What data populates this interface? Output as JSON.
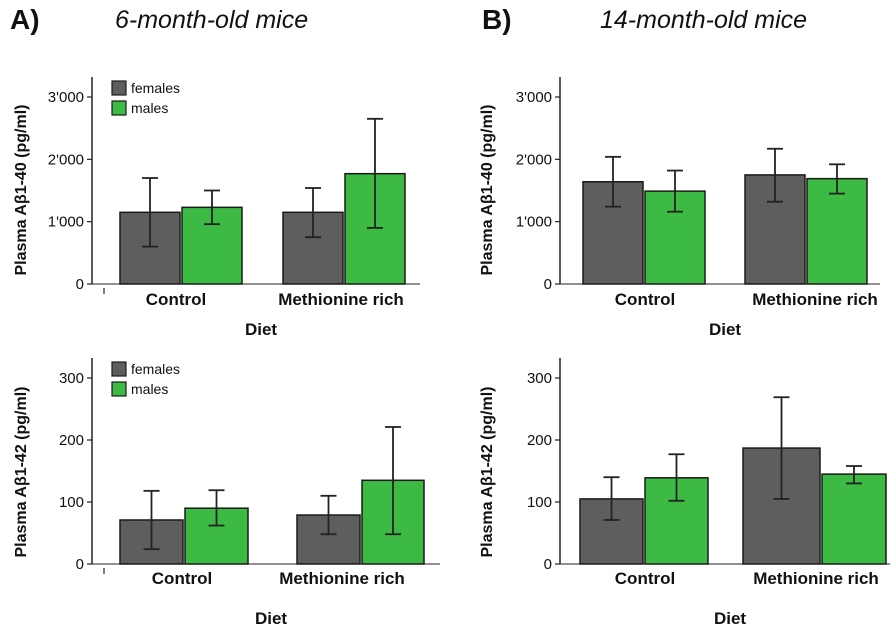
{
  "panels": {
    "a": {
      "letter": "A)",
      "title": "6-month-old mice"
    },
    "b": {
      "letter": "B)",
      "title": "14-month-old mice"
    }
  },
  "colors": {
    "females": "#5e5e5e",
    "males": "#3dba44"
  },
  "chart_data": [
    {
      "type": "bar",
      "panel": "A",
      "categories": [
        "Control",
        "Methionine rich"
      ],
      "series": [
        {
          "name": "females",
          "values": [
            1150,
            1150
          ],
          "error_low": [
            600,
            750
          ],
          "error_high": [
            1700,
            1540
          ]
        },
        {
          "name": "males",
          "values": [
            1230,
            1770
          ],
          "error_low": [
            960,
            900
          ],
          "error_high": [
            1500,
            2650
          ]
        }
      ],
      "yticks": [
        "0",
        "1'000",
        "2'000",
        "3'000"
      ],
      "ytick_values": [
        0,
        1000,
        2000,
        3000
      ],
      "ylim": [
        0,
        3000
      ],
      "ylabel": "Plasma Aβ1-40 (pg/ml)",
      "xlabel": "Diet",
      "legend": true
    },
    {
      "type": "bar",
      "panel": "B",
      "categories": [
        "Control",
        "Methionine rich"
      ],
      "series": [
        {
          "name": "females",
          "values": [
            1640,
            1750
          ],
          "error_low": [
            1240,
            1320
          ],
          "error_high": [
            2040,
            2170
          ]
        },
        {
          "name": "males",
          "values": [
            1490,
            1690
          ],
          "error_low": [
            1160,
            1450
          ],
          "error_high": [
            1820,
            1920
          ]
        }
      ],
      "yticks": [
        "0",
        "1'000",
        "2'000",
        "3'000"
      ],
      "ytick_values": [
        0,
        1000,
        2000,
        3000
      ],
      "ylim": [
        0,
        3000
      ],
      "ylabel": "Plasma Aβ1-40 (pg/ml)",
      "xlabel": "Diet",
      "legend": false
    },
    {
      "type": "bar",
      "panel": "A",
      "categories": [
        "Control",
        "Methionine rich"
      ],
      "series": [
        {
          "name": "females",
          "values": [
            71,
            79
          ],
          "error_low": [
            24,
            48
          ],
          "error_high": [
            118,
            110
          ]
        },
        {
          "name": "males",
          "values": [
            90,
            135
          ],
          "error_low": [
            62,
            48
          ],
          "error_high": [
            119,
            221
          ]
        }
      ],
      "yticks": [
        "0",
        "100",
        "200",
        "300"
      ],
      "ytick_values": [
        0,
        100,
        200,
        300
      ],
      "ylim": [
        0,
        300
      ],
      "ylabel": "Plasma Aβ1-42 (pg/ml)",
      "xlabel": "Diet",
      "legend": true
    },
    {
      "type": "bar",
      "panel": "B",
      "categories": [
        "Control",
        "Methionine rich"
      ],
      "series": [
        {
          "name": "females",
          "values": [
            105,
            187
          ],
          "error_low": [
            71,
            105
          ],
          "error_high": [
            140,
            269
          ]
        },
        {
          "name": "males",
          "values": [
            139,
            145
          ],
          "error_low": [
            102,
            130
          ],
          "error_high": [
            177,
            158
          ]
        }
      ],
      "yticks": [
        "0",
        "100",
        "200",
        "300"
      ],
      "ytick_values": [
        0,
        100,
        200,
        300
      ],
      "ylim": [
        0,
        300
      ],
      "ylabel": "Plasma Aβ1-42 (pg/ml)",
      "xlabel": "Diet",
      "legend": false
    }
  ]
}
